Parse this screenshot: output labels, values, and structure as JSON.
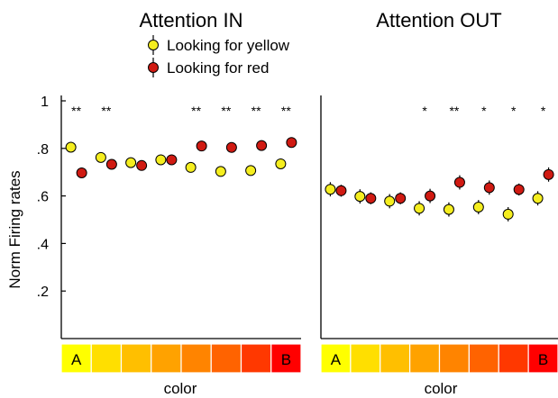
{
  "chart_data": [
    {
      "type": "scatter",
      "title": "Attention IN",
      "xlabel": "color",
      "ylabel": "Norm Firing rates",
      "ylim": [
        0,
        1
      ],
      "yticks": [
        "1",
        ".8",
        ".6",
        ".4",
        ".2"
      ],
      "categories": [
        "A",
        "",
        "",
        "",
        "",
        "",
        "",
        "B"
      ],
      "series": [
        {
          "name": "Looking for yellow",
          "values": [
            0.805,
            0.762,
            0.74,
            0.752,
            0.72,
            0.703,
            0.707,
            0.735
          ],
          "errors": [
            0.018,
            0.018,
            0.015,
            0.015,
            0.015,
            0.015,
            0.015,
            0.015
          ]
        },
        {
          "name": "Looking for red",
          "values": [
            0.697,
            0.733,
            0.728,
            0.752,
            0.81,
            0.804,
            0.812,
            0.825
          ],
          "errors": [
            0.018,
            0.018,
            0.015,
            0.015,
            0.018,
            0.015,
            0.015,
            0.015
          ]
        }
      ],
      "significance": [
        "**",
        "**",
        "",
        "",
        "**",
        "**",
        "**",
        "**"
      ]
    },
    {
      "type": "scatter",
      "title": "Attention OUT",
      "xlabel": "color",
      "ylim": [
        0,
        1
      ],
      "categories": [
        "A",
        "",
        "",
        "",
        "",
        "",
        "",
        "B"
      ],
      "series": [
        {
          "name": "Looking for yellow",
          "values": [
            0.628,
            0.598,
            0.578,
            0.548,
            0.543,
            0.553,
            0.523,
            0.59
          ],
          "errors": [
            0.03,
            0.03,
            0.03,
            0.03,
            0.03,
            0.03,
            0.03,
            0.03
          ]
        },
        {
          "name": "Looking for red",
          "values": [
            0.622,
            0.59,
            0.59,
            0.6,
            0.657,
            0.635,
            0.627,
            0.69
          ],
          "errors": [
            0.025,
            0.025,
            0.025,
            0.03,
            0.03,
            0.03,
            0.025,
            0.03
          ]
        }
      ],
      "significance": [
        "",
        "",
        "",
        "*",
        "**",
        "*",
        "*",
        "*"
      ]
    }
  ],
  "legend": {
    "items": [
      {
        "label": "Looking for yellow",
        "color": "#f5ee1f"
      },
      {
        "label": "Looking for red",
        "color": "#d01a12"
      }
    ]
  },
  "color_strip": [
    "#ffff00",
    "#ffdf00",
    "#ffbf00",
    "#ffa200",
    "#ff8400",
    "#ff6300",
    "#ff3800",
    "#ff0000"
  ],
  "colors": {
    "yellow_marker": "#f5ee1f",
    "red_marker": "#d01a12"
  }
}
